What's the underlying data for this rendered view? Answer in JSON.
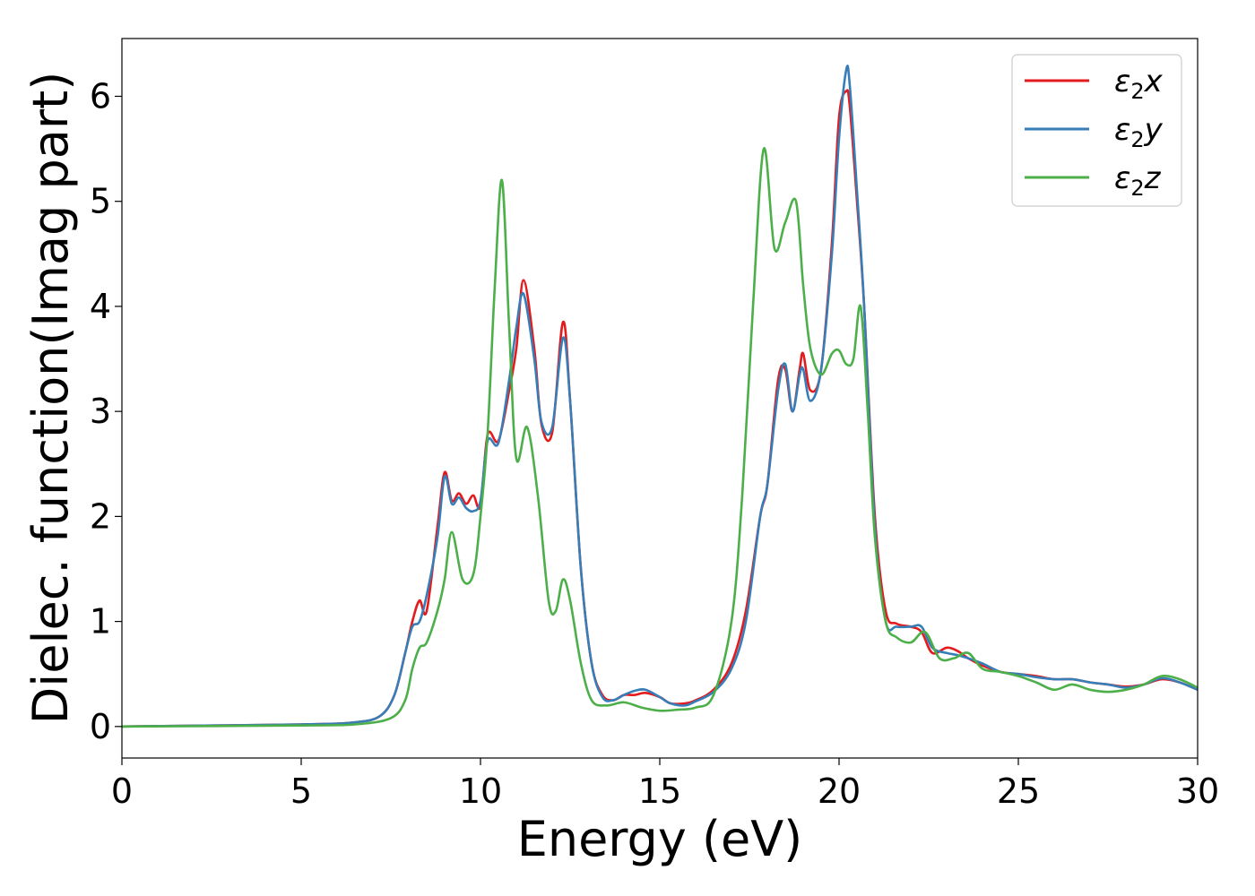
{
  "chart_data": {
    "type": "line",
    "title": "",
    "xlabel": "Energy (eV)",
    "ylabel": "Dielec. function(Imag part)",
    "xlim": [
      0,
      30
    ],
    "ylim": [
      -0.3,
      6.55
    ],
    "xticks": [
      0,
      5,
      10,
      15,
      20,
      25,
      30
    ],
    "yticks": [
      0,
      1,
      2,
      3,
      4,
      5,
      6
    ],
    "grid": false,
    "legend": {
      "position": "top-right"
    },
    "series": [
      {
        "name": "ε2x",
        "legend_main": "ε",
        "legend_sub": "2",
        "legend_var": "x",
        "color": "#e41a1c",
        "x": [
          0,
          5,
          6.5,
          7.2,
          7.6,
          7.9,
          8.1,
          8.3,
          8.5,
          8.8,
          9.0,
          9.2,
          9.4,
          9.6,
          9.8,
          10.0,
          10.2,
          10.5,
          10.8,
          11.0,
          11.2,
          11.5,
          11.7,
          12.0,
          12.3,
          12.5,
          12.8,
          13.1,
          13.4,
          13.7,
          14.0,
          14.3,
          14.6,
          15.0,
          15.3,
          15.7,
          16.0,
          16.5,
          17.0,
          17.4,
          17.8,
          18.0,
          18.3,
          18.5,
          18.7,
          18.9,
          19.0,
          19.2,
          19.5,
          19.8,
          20.0,
          20.2,
          20.3,
          20.5,
          20.7,
          21.0,
          21.3,
          21.6,
          22.0,
          22.3,
          22.6,
          23.0,
          23.3,
          23.6,
          24.0,
          24.5,
          25.0,
          25.5,
          26.0,
          26.5,
          27.0,
          27.5,
          28.0,
          28.5,
          29.0,
          29.5,
          30.0
        ],
        "y": [
          0.0,
          0.02,
          0.04,
          0.1,
          0.3,
          0.7,
          1.0,
          1.2,
          1.1,
          1.9,
          2.42,
          2.15,
          2.22,
          2.12,
          2.2,
          2.1,
          2.78,
          2.72,
          3.2,
          3.6,
          4.25,
          3.6,
          2.88,
          2.8,
          3.85,
          3.1,
          1.5,
          0.6,
          0.3,
          0.25,
          0.3,
          0.3,
          0.32,
          0.28,
          0.22,
          0.22,
          0.25,
          0.35,
          0.6,
          1.1,
          2.0,
          2.3,
          3.3,
          3.4,
          3.0,
          3.4,
          3.55,
          3.2,
          3.4,
          4.6,
          5.8,
          6.05,
          5.9,
          5.0,
          4.0,
          2.0,
          1.1,
          0.98,
          0.95,
          0.9,
          0.7,
          0.75,
          0.72,
          0.65,
          0.58,
          0.52,
          0.5,
          0.48,
          0.45,
          0.45,
          0.42,
          0.4,
          0.38,
          0.4,
          0.45,
          0.42,
          0.35
        ]
      },
      {
        "name": "ε2y",
        "legend_main": "ε",
        "legend_sub": "2",
        "legend_var": "y",
        "color": "#377eb8",
        "x": [
          0,
          5,
          6.5,
          7.2,
          7.6,
          7.9,
          8.1,
          8.3,
          8.5,
          8.8,
          9.0,
          9.2,
          9.4,
          9.6,
          9.8,
          10.0,
          10.2,
          10.5,
          10.8,
          11.0,
          11.2,
          11.5,
          11.7,
          12.0,
          12.3,
          12.5,
          12.8,
          13.1,
          13.4,
          13.7,
          14.0,
          14.3,
          14.6,
          15.0,
          15.3,
          15.7,
          16.0,
          16.5,
          17.0,
          17.4,
          17.8,
          18.0,
          18.3,
          18.5,
          18.7,
          18.9,
          19.0,
          19.2,
          19.5,
          19.8,
          20.0,
          20.2,
          20.3,
          20.5,
          20.7,
          21.0,
          21.3,
          21.6,
          22.0,
          22.3,
          22.6,
          23.0,
          23.3,
          23.6,
          24.0,
          24.5,
          25.0,
          25.5,
          26.0,
          26.5,
          27.0,
          27.5,
          28.0,
          28.5,
          29.0,
          29.5,
          30.0
        ],
        "y": [
          0.0,
          0.02,
          0.04,
          0.1,
          0.3,
          0.7,
          0.95,
          1.0,
          1.25,
          1.8,
          2.38,
          2.12,
          2.18,
          2.08,
          2.05,
          2.15,
          2.72,
          2.7,
          3.3,
          3.8,
          4.12,
          3.5,
          2.9,
          2.85,
          3.7,
          3.1,
          1.5,
          0.6,
          0.28,
          0.25,
          0.3,
          0.34,
          0.35,
          0.28,
          0.22,
          0.2,
          0.24,
          0.33,
          0.55,
          1.0,
          2.0,
          2.3,
          3.2,
          3.45,
          3.0,
          3.35,
          3.4,
          3.1,
          3.4,
          4.5,
          5.6,
          6.25,
          6.1,
          5.1,
          4.0,
          1.9,
          1.0,
          0.95,
          0.95,
          0.95,
          0.75,
          0.7,
          0.68,
          0.65,
          0.6,
          0.52,
          0.5,
          0.47,
          0.45,
          0.45,
          0.42,
          0.4,
          0.37,
          0.4,
          0.46,
          0.42,
          0.35
        ]
      },
      {
        "name": "ε2z",
        "legend_main": "ε",
        "legend_sub": "2",
        "legend_var": "z",
        "color": "#4daf4a",
        "x": [
          0,
          5,
          6.5,
          7.5,
          7.9,
          8.1,
          8.3,
          8.5,
          8.8,
          9.0,
          9.2,
          9.5,
          9.8,
          10.0,
          10.2,
          10.4,
          10.6,
          10.8,
          11.0,
          11.3,
          11.6,
          11.9,
          12.1,
          12.3,
          12.5,
          12.8,
          13.1,
          13.5,
          14.0,
          14.5,
          15.0,
          15.5,
          16.0,
          16.5,
          17.0,
          17.3,
          17.6,
          17.9,
          18.2,
          18.5,
          18.8,
          19.0,
          19.2,
          19.5,
          19.8,
          20.0,
          20.2,
          20.4,
          20.6,
          20.8,
          21.0,
          21.3,
          21.6,
          22.0,
          22.4,
          22.8,
          23.2,
          23.6,
          24.0,
          24.5,
          25.0,
          25.5,
          26.0,
          26.5,
          27.0,
          27.5,
          28.0,
          28.5,
          29.0,
          29.5,
          30.0
        ],
        "y": [
          0.0,
          0.01,
          0.02,
          0.08,
          0.25,
          0.55,
          0.75,
          0.8,
          1.1,
          1.4,
          1.85,
          1.4,
          1.45,
          2.0,
          2.8,
          4.2,
          5.2,
          3.8,
          2.55,
          2.85,
          2.2,
          1.2,
          1.1,
          1.4,
          1.2,
          0.6,
          0.25,
          0.2,
          0.23,
          0.18,
          0.15,
          0.16,
          0.18,
          0.3,
          1.0,
          2.2,
          4.0,
          5.5,
          4.55,
          4.8,
          5.0,
          4.2,
          3.6,
          3.35,
          3.55,
          3.58,
          3.45,
          3.5,
          4.0,
          3.0,
          1.8,
          1.0,
          0.85,
          0.8,
          0.9,
          0.65,
          0.65,
          0.7,
          0.55,
          0.52,
          0.48,
          0.42,
          0.35,
          0.4,
          0.35,
          0.33,
          0.35,
          0.4,
          0.48,
          0.45,
          0.37
        ]
      }
    ]
  }
}
